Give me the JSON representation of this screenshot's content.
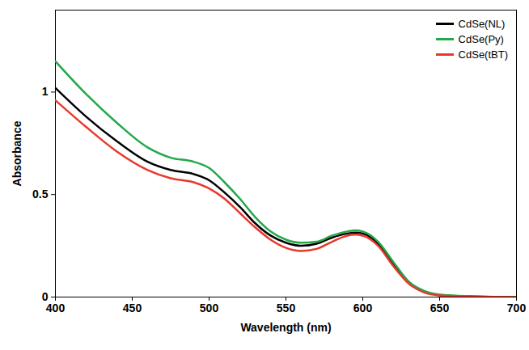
{
  "chart_data": {
    "type": "line",
    "x_label": "Wavelength (nm)",
    "y_label": "Absorbance",
    "x": [
      400,
      420,
      440,
      460,
      475,
      490,
      500,
      510,
      520,
      530,
      540,
      550,
      560,
      570,
      580,
      590,
      595,
      600,
      610,
      620,
      630,
      640,
      650,
      670,
      700
    ],
    "series": [
      {
        "name": "CdSe(NL)",
        "color": "#000000",
        "values": [
          1.02,
          0.88,
          0.76,
          0.66,
          0.62,
          0.6,
          0.57,
          0.51,
          0.44,
          0.36,
          0.3,
          0.265,
          0.25,
          0.26,
          0.29,
          0.31,
          0.315,
          0.31,
          0.26,
          0.16,
          0.07,
          0.025,
          0.01,
          0.003,
          0
        ]
      },
      {
        "name": "CdSe(Py)",
        "color": "#22a84a",
        "values": [
          1.15,
          0.99,
          0.85,
          0.73,
          0.68,
          0.66,
          0.63,
          0.56,
          0.48,
          0.39,
          0.32,
          0.28,
          0.265,
          0.27,
          0.3,
          0.32,
          0.325,
          0.32,
          0.27,
          0.17,
          0.075,
          0.03,
          0.012,
          0.004,
          0
        ]
      },
      {
        "name": "CdSe(tBT)",
        "color": "#e8382c",
        "values": [
          0.96,
          0.83,
          0.71,
          0.62,
          0.58,
          0.56,
          0.53,
          0.48,
          0.41,
          0.34,
          0.28,
          0.24,
          0.225,
          0.235,
          0.27,
          0.3,
          0.305,
          0.3,
          0.25,
          0.15,
          0.065,
          0.022,
          0.008,
          0.002,
          0
        ]
      }
    ],
    "xlim": [
      400,
      700
    ],
    "xticks": [
      400,
      450,
      500,
      550,
      600,
      650,
      700
    ],
    "ylim": [
      0,
      1.4
    ],
    "yticks": [
      0,
      0.5,
      1
    ],
    "legend": "top-right",
    "grid": false
  }
}
